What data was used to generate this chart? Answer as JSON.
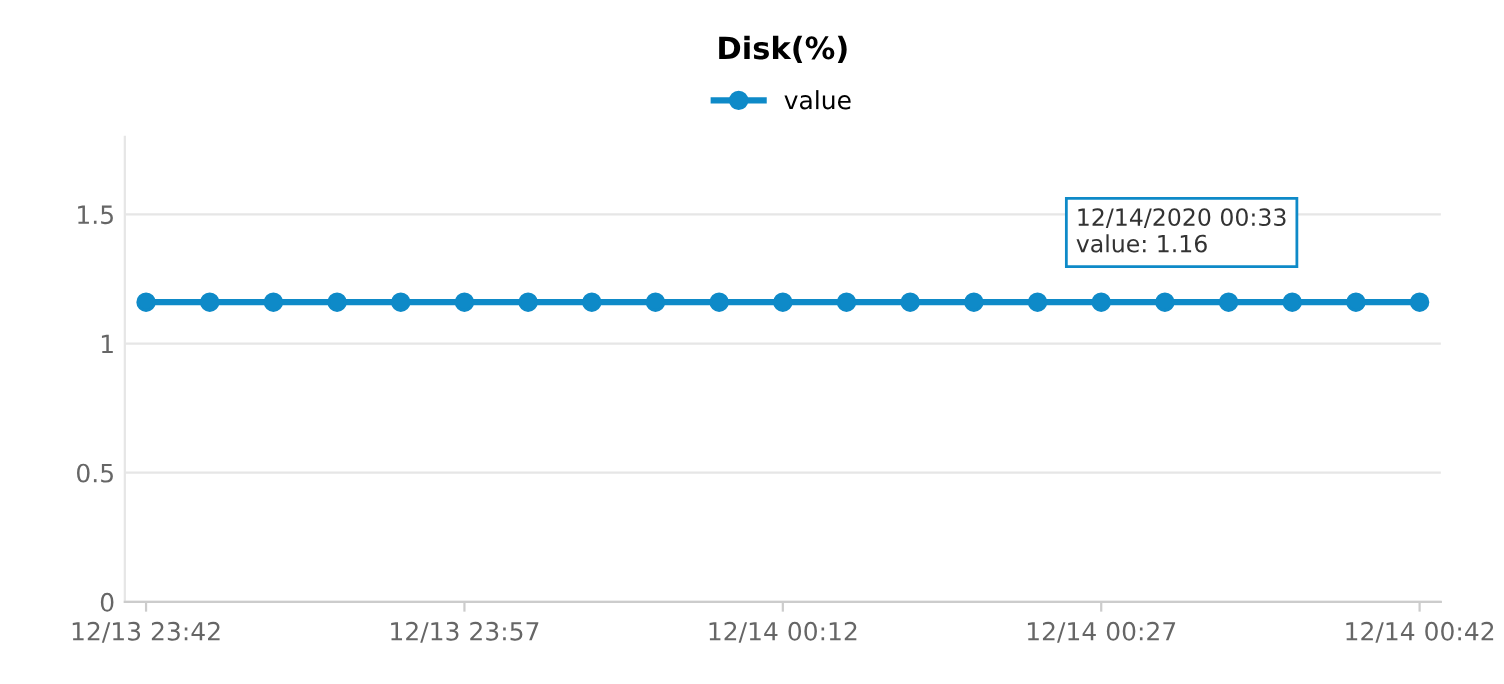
{
  "chart_data": {
    "type": "line",
    "title": "Disk(%)",
    "x": [
      "2020-12-13T23:42",
      "2020-12-13T23:45",
      "2020-12-13T23:48",
      "2020-12-13T23:51",
      "2020-12-13T23:54",
      "2020-12-13T23:57",
      "2020-12-14T00:00",
      "2020-12-14T00:03",
      "2020-12-14T00:06",
      "2020-12-14T00:09",
      "2020-12-14T00:12",
      "2020-12-14T00:15",
      "2020-12-14T00:18",
      "2020-12-14T00:21",
      "2020-12-14T00:24",
      "2020-12-14T00:27",
      "2020-12-14T00:30",
      "2020-12-14T00:33",
      "2020-12-14T00:36",
      "2020-12-14T00:39",
      "2020-12-14T00:42"
    ],
    "series": [
      {
        "name": "value",
        "color": "#0e8ac8",
        "values": [
          1.16,
          1.16,
          1.16,
          1.16,
          1.16,
          1.16,
          1.16,
          1.16,
          1.16,
          1.16,
          1.16,
          1.16,
          1.16,
          1.16,
          1.16,
          1.16,
          1.16,
          1.16,
          1.16,
          1.16,
          1.16
        ]
      }
    ],
    "xlim": [
      "2020-12-13T23:41",
      "2020-12-14T00:43"
    ],
    "xticks": [
      {
        "value": "2020-12-13T23:42",
        "label": "12/13 23:42"
      },
      {
        "value": "2020-12-13T23:57",
        "label": "12/13 23:57"
      },
      {
        "value": "2020-12-14T00:12",
        "label": "12/14 00:12"
      },
      {
        "value": "2020-12-14T00:27",
        "label": "12/14 00:27"
      },
      {
        "value": "2020-12-14T00:42",
        "label": "12/14 00:42"
      }
    ],
    "ylim": [
      0,
      1.8
    ],
    "yticks": [
      0,
      0.5,
      1,
      1.5
    ],
    "grid": "y",
    "legend": "top",
    "marker": "circle",
    "line_style": "solid",
    "annotations": [
      {
        "text": "12/14/2020 00:33\nvalue: 1.16",
        "x": "2020-12-14T00:33",
        "y": 1.16
      }
    ]
  }
}
